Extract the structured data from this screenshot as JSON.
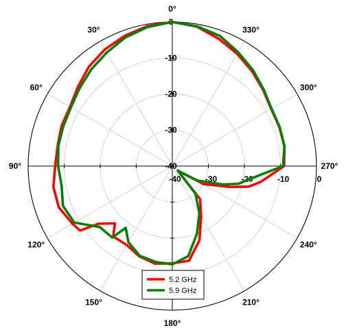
{
  "chart_data": {
    "type": "polar_line",
    "theta_direction": "counterclockwise",
    "theta_zero": "top",
    "angle_ticks": [
      0,
      30,
      60,
      90,
      120,
      150,
      180,
      210,
      240,
      270,
      300,
      330
    ],
    "angle_tick_labels": [
      "0°",
      "30°",
      "60°",
      "90°",
      "120°",
      "150°",
      "180°",
      "210°",
      "240°",
      "270°",
      "300°",
      "330°"
    ],
    "r_range": [
      -40,
      0
    ],
    "r_ticks": [
      0,
      -10,
      -20,
      -30,
      -40
    ],
    "r_tick_labels_vertical": [
      "0",
      "-10",
      "-20",
      "-30",
      "-40"
    ],
    "r_tick_labels_horizontal": [
      "-40",
      "-30",
      "-20",
      "-10",
      "0"
    ],
    "legend_position": "bottom-center",
    "series": [
      {
        "name": "5.2 GHz",
        "color": "#ff0000",
        "theta": [
          0,
          10,
          20,
          30,
          40,
          50,
          60,
          70,
          80,
          90,
          100,
          110,
          120,
          125,
          128,
          135,
          140,
          150,
          160,
          170,
          180,
          190,
          200,
          210,
          220,
          230,
          240,
          250,
          255,
          260,
          270,
          280,
          290,
          300,
          310,
          320,
          330,
          340,
          350,
          360
        ],
        "r": [
          0,
          -0.5,
          -1.5,
          -2.6,
          -4,
          -5.8,
          -7.2,
          -7.3,
          -7.7,
          -7.5,
          -6.5,
          -6.5,
          -8,
          -8.8,
          -14,
          -17.5,
          -14.5,
          -14.7,
          -13.3,
          -12.5,
          -13,
          -13.3,
          -18,
          -24,
          -28,
          -38,
          -30,
          -23,
          -18,
          -15,
          -9,
          -8.4,
          -8.4,
          -8.3,
          -7.1,
          -5.6,
          -4,
          -2.4,
          -0.7,
          0
        ]
      },
      {
        "name": "5.9 GHz",
        "color": "#008000",
        "theta": [
          0,
          10,
          20,
          30,
          40,
          50,
          60,
          70,
          80,
          90,
          100,
          110,
          120,
          130,
          140,
          143,
          150,
          160,
          170,
          180,
          190,
          200,
          210,
          220,
          230,
          240,
          250,
          255,
          260,
          270,
          280,
          290,
          300,
          310,
          320,
          330,
          340,
          350,
          360
        ],
        "r": [
          0,
          -0.8,
          -2,
          -3.6,
          -5,
          -6.4,
          -7.5,
          -7.8,
          -7.9,
          -8.3,
          -8.8,
          -7.7,
          -8.6,
          -13.7,
          -14.1,
          -18.5,
          -15.6,
          -13.5,
          -13,
          -12.7,
          -14.6,
          -20,
          -25,
          -30,
          -38,
          -32,
          -25,
          -21,
          -18.5,
          -9.3,
          -8.4,
          -8.3,
          -8.2,
          -6.9,
          -5.2,
          -3.5,
          -1.5,
          -0.6,
          0
        ]
      }
    ]
  }
}
